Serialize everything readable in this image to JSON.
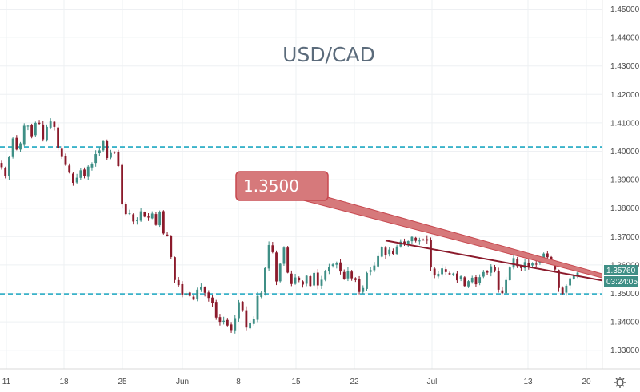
{
  "chart_data": {
    "type": "candlestick",
    "title": "USD/CAD",
    "x_ticks": [
      "11",
      "18",
      "25",
      "Jun",
      "8",
      "15",
      "22",
      "Jul",
      "13",
      "20"
    ],
    "y_ticks": [
      "1.45000",
      "1.44000",
      "1.43000",
      "1.42000",
      "1.41000",
      "1.40000",
      "1.39000",
      "1.38000",
      "1.37000",
      "1.36000",
      "1.35000",
      "1.34000",
      "1.33000"
    ],
    "ylim": [
      1.3235,
      1.4535
    ],
    "horizontal_levels": [
      1.4015,
      1.3498
    ],
    "annotation": {
      "text": "1.3500",
      "line_from": {
        "index": 102,
        "value": 1.3686
      },
      "line_to": {
        "index": 176,
        "value": 1.3505
      }
    },
    "last_price_label": "1.35760",
    "countdown_label": "03:24:05",
    "colors": {
      "up": "#3f8f86",
      "down": "#8b1a2b",
      "level_line": "#3bb3c9",
      "annotation": "#c7484f",
      "annotation_fill": "#d6797b",
      "price_badge": "#3f8f86"
    },
    "grid": true,
    "close_prices": [
      1.3944,
      1.3912,
      1.3979,
      1.4045,
      1.4006,
      1.4028,
      1.409,
      1.409,
      1.4053,
      1.41,
      1.4097,
      1.4042,
      1.4086,
      1.4105,
      1.4086,
      1.4011,
      1.398,
      1.3952,
      1.3925,
      1.3889,
      1.3907,
      1.3933,
      1.3912,
      1.3946,
      1.3956,
      1.399,
      1.4003,
      1.4038,
      1.3976,
      1.3994,
      1.3997,
      1.3948,
      1.3813,
      1.3779,
      1.3782,
      1.3753,
      1.3758,
      1.3789,
      1.377,
      1.3767,
      1.3781,
      1.3741,
      1.3787,
      1.3711,
      1.3703,
      1.3628,
      1.3547,
      1.3529,
      1.3496,
      1.35,
      1.3491,
      1.3478,
      1.3513,
      1.3522,
      1.3502,
      1.3484,
      1.3467,
      1.3415,
      1.34,
      1.3404,
      1.3387,
      1.3371,
      1.3413,
      1.3469,
      1.3441,
      1.338,
      1.3395,
      1.3411,
      1.3491,
      1.3502,
      1.3589,
      1.367,
      1.3645,
      1.3542,
      1.3604,
      1.3661,
      1.3573,
      1.3533,
      1.3556,
      1.3546,
      1.3531,
      1.3562,
      1.3526,
      1.3572,
      1.3528,
      1.3548,
      1.358,
      1.3593,
      1.3602,
      1.3608,
      1.3577,
      1.3551,
      1.3578,
      1.3553,
      1.3547,
      1.3505,
      1.3519,
      1.3572,
      1.3582,
      1.3598,
      1.3631,
      1.3662,
      1.3636,
      1.3654,
      1.3639,
      1.3665,
      1.3682,
      1.3675,
      1.3684,
      1.3699,
      1.3685,
      1.3686,
      1.3688,
      1.3686,
      1.3591,
      1.3563,
      1.3569,
      1.3588,
      1.3575,
      1.3567,
      1.357,
      1.3546,
      1.356,
      1.3526,
      1.3543,
      1.3555,
      1.3532,
      1.3557,
      1.3575,
      1.3573,
      1.3595,
      1.3581,
      1.3513,
      1.3501,
      1.3547,
      1.3591,
      1.3624,
      1.3596,
      1.3589,
      1.361,
      1.3595,
      1.3605,
      1.3604,
      1.3619,
      1.364,
      1.3627,
      1.3614,
      1.3584,
      1.3519,
      1.3499,
      1.3527,
      1.3553,
      1.3562,
      1.3573
    ]
  }
}
